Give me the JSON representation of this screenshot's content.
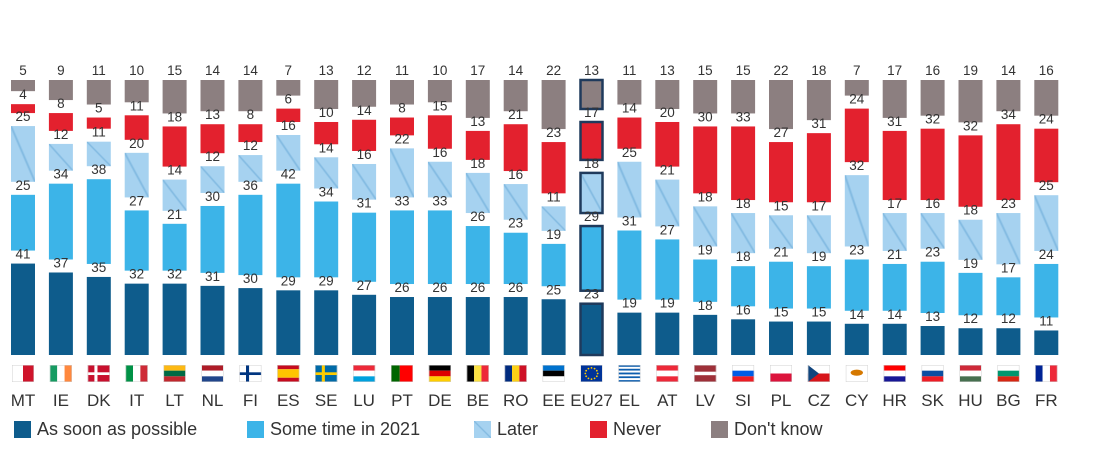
{
  "chart_data": {
    "type": "bar",
    "stacked": true,
    "percent": true,
    "categories": [
      "MT",
      "IE",
      "DK",
      "IT",
      "LT",
      "NL",
      "FI",
      "ES",
      "SE",
      "LU",
      "PT",
      "DE",
      "BE",
      "RO",
      "EE",
      "EU27",
      "EL",
      "AT",
      "LV",
      "SI",
      "PL",
      "CZ",
      "CY",
      "HR",
      "SK",
      "HU",
      "BG",
      "FR"
    ],
    "highlight": "EU27",
    "series": [
      {
        "name": "As soon as possible",
        "color": "#0e5c8c",
        "values": [
          41,
          37,
          35,
          32,
          32,
          31,
          30,
          29,
          29,
          27,
          26,
          26,
          26,
          26,
          25,
          23,
          19,
          19,
          18,
          16,
          15,
          15,
          14,
          14,
          13,
          12,
          12,
          11
        ]
      },
      {
        "name": "Some time in 2021",
        "color": "#3cb4e8",
        "values": [
          25,
          34,
          38,
          27,
          21,
          30,
          36,
          42,
          34,
          31,
          33,
          33,
          26,
          23,
          19,
          29,
          31,
          27,
          19,
          18,
          21,
          19,
          23,
          21,
          23,
          19,
          17,
          24
        ]
      },
      {
        "name": "Later",
        "color": "#a6d2f0",
        "values": [
          25,
          12,
          11,
          20,
          14,
          12,
          12,
          16,
          14,
          16,
          22,
          16,
          18,
          16,
          11,
          18,
          25,
          21,
          18,
          18,
          15,
          17,
          32,
          17,
          16,
          18,
          23,
          25
        ]
      },
      {
        "name": "Never",
        "color": "#e3212e",
        "values": [
          4,
          8,
          5,
          11,
          18,
          13,
          8,
          6,
          10,
          14,
          8,
          15,
          13,
          21,
          23,
          17,
          14,
          20,
          30,
          33,
          27,
          31,
          24,
          31,
          32,
          32,
          34,
          24
        ]
      },
      {
        "name": "Don't know",
        "color": "#8c7f80",
        "values": [
          5,
          9,
          11,
          10,
          15,
          14,
          14,
          7,
          13,
          12,
          11,
          10,
          17,
          14,
          22,
          13,
          11,
          13,
          15,
          15,
          22,
          18,
          7,
          17,
          16,
          19,
          14,
          16
        ]
      }
    ],
    "xlabel": "",
    "ylabel": "",
    "legend_position": "bottom",
    "grid": false
  }
}
